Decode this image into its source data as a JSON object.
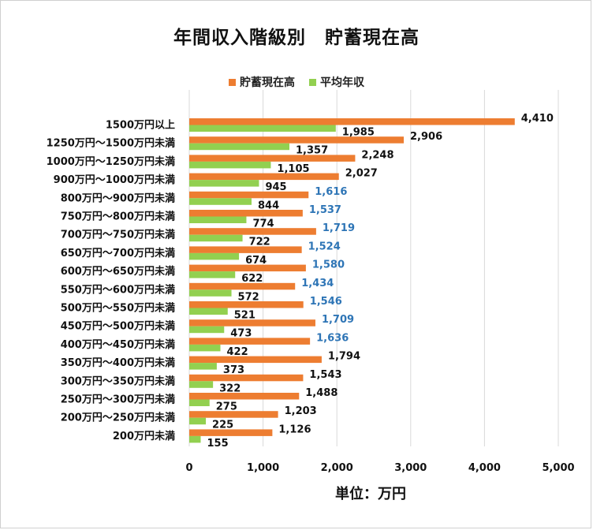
{
  "title": "年間収入階級別　貯蓄現在高",
  "chart_data": {
    "type": "bar",
    "orientation": "horizontal",
    "title": "年間収入階級別　貯蓄現在高",
    "xlabel": "単位：万円",
    "ylabel": "",
    "xlim": [
      0,
      5000
    ],
    "xticks": [
      0,
      1000,
      2000,
      3000,
      4000,
      5000
    ],
    "xtick_labels": [
      "0",
      "1,000",
      "2,000",
      "3,000",
      "4,000",
      "5,000"
    ],
    "grid": "vertical",
    "legend_position": "top-center",
    "categories": [
      "1500万円以上",
      "1250万円～1500万円未満",
      "1000万円～1250万円未満",
      "900万円～1000万円未満",
      "800万円～900万円未満",
      "750万円～800万円未満",
      "700万円～750万円未満",
      "650万円～700万円未満",
      "600万円～650万円未満",
      "550万円～600万円未満",
      "500万円～550万円未満",
      "450万円～500万円未満",
      "400万円～450万円未満",
      "350万円～400万円未満",
      "300万円～350万円未満",
      "250万円～300万円未満",
      "200万円～250万円未満",
      "200万円未満"
    ],
    "series": [
      {
        "name": "貯蓄現在高",
        "color": "#ED7D31",
        "values": [
          4410,
          2906,
          2248,
          2027,
          1616,
          1537,
          1719,
          1524,
          1580,
          1434,
          1546,
          1709,
          1636,
          1794,
          1543,
          1488,
          1203,
          1126
        ],
        "labels": [
          "4,410",
          "2,906",
          "2,248",
          "2,027",
          "1,616",
          "1,537",
          "1,719",
          "1,524",
          "1,580",
          "1,434",
          "1,546",
          "1,709",
          "1,636",
          "1,794",
          "1,543",
          "1,488",
          "1,203",
          "1,126"
        ],
        "label_colors": [
          "#111111",
          "#111111",
          "#111111",
          "#111111",
          "#2E75B6",
          "#2E75B6",
          "#2E75B6",
          "#2E75B6",
          "#2E75B6",
          "#2E75B6",
          "#2E75B6",
          "#2E75B6",
          "#2E75B6",
          "#111111",
          "#111111",
          "#111111",
          "#111111",
          "#111111"
        ]
      },
      {
        "name": "平均年収",
        "color": "#92D050",
        "values": [
          1985,
          1357,
          1105,
          945,
          844,
          774,
          722,
          674,
          622,
          572,
          521,
          473,
          422,
          373,
          322,
          275,
          225,
          155
        ],
        "labels": [
          "1,985",
          "1,357",
          "1,105",
          "945",
          "844",
          "774",
          "722",
          "674",
          "622",
          "572",
          "521",
          "473",
          "422",
          "373",
          "322",
          "275",
          "225",
          "155"
        ],
        "label_colors": [
          "#111111",
          "#111111",
          "#111111",
          "#111111",
          "#111111",
          "#111111",
          "#111111",
          "#111111",
          "#111111",
          "#111111",
          "#111111",
          "#111111",
          "#111111",
          "#111111",
          "#111111",
          "#111111",
          "#111111",
          "#111111"
        ]
      }
    ]
  }
}
